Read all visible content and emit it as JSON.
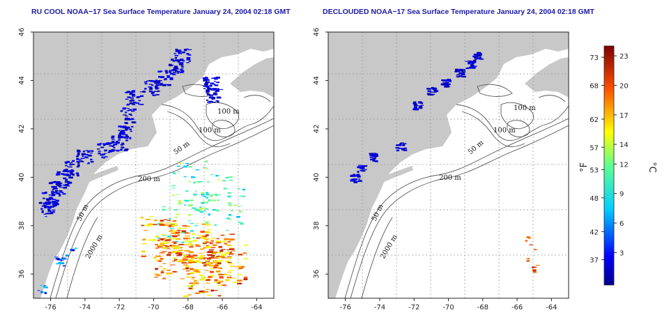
{
  "chart_data": [
    {
      "type": "heatmap",
      "title": "RU COOL NOAA−17 Sea Surface Temperature January 24, 2004 02:18 GMT",
      "x_ticks": [
        "-76",
        "-74",
        "-72",
        "-70",
        "-68",
        "-66",
        "-64"
      ],
      "y_ticks": [
        "46",
        "44",
        "42",
        "40",
        "38",
        "36"
      ],
      "xlim": [
        -77,
        -63
      ],
      "ylim": [
        35,
        46
      ],
      "grid": "dotted",
      "contour_labels": [
        "100 m",
        "100 m",
        "50 m",
        "200 m",
        "50 m",
        "2000 m"
      ]
    },
    {
      "type": "heatmap",
      "title": "DECLOUDED NOAA−17 Sea Surface Temperature January 24, 2004 02:18 GMT",
      "x_ticks": [
        "-76",
        "-74",
        "-72",
        "-70",
        "-68",
        "-66",
        "-64"
      ],
      "y_ticks": [
        "46",
        "44",
        "42",
        "40",
        "38",
        "36"
      ],
      "xlim": [
        -77,
        -63
      ],
      "ylim": [
        35,
        46
      ],
      "grid": "dotted",
      "contour_labels": [
        "100 m",
        "100 m",
        "50 m",
        "200 m",
        "50 m",
        "2000 m"
      ]
    }
  ],
  "colorbar": {
    "fahrenheit_ticks": [
      "73",
      "68",
      "62",
      "57",
      "53",
      "48",
      "42",
      "37"
    ],
    "celsius_ticks": [
      "23",
      "20",
      "17",
      "14",
      "12",
      "9",
      "6",
      "3"
    ],
    "fahrenheit_unit": "°F",
    "celsius_unit": "°C"
  },
  "colors": {
    "land": "#c8c8c8",
    "title": "#1a1aa8",
    "contour": "#555555",
    "grid": "#999999"
  }
}
